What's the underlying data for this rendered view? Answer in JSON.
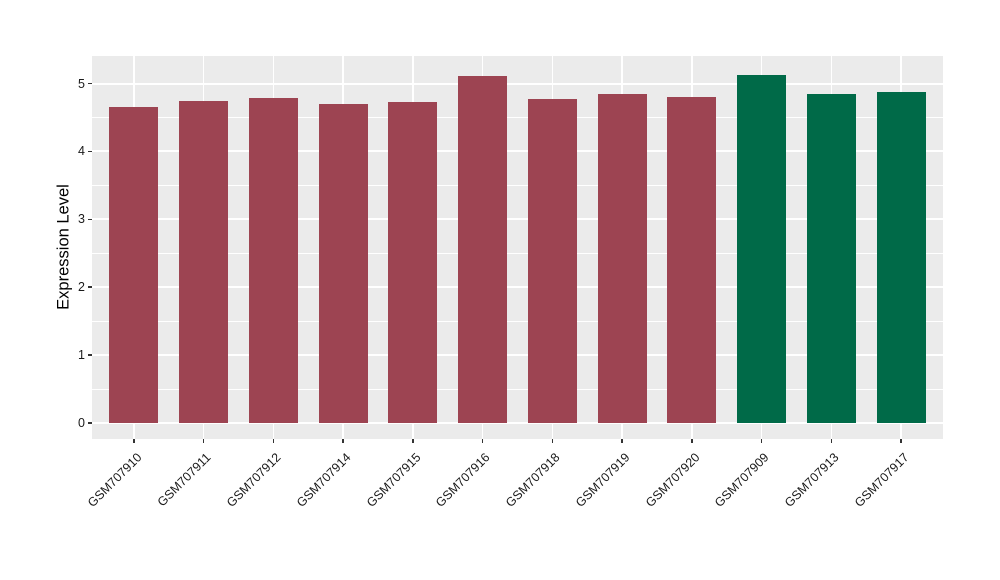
{
  "chart_data": {
    "type": "bar",
    "title": "",
    "xlabel": "",
    "ylabel": "Expression Level",
    "categories": [
      "GSM707910",
      "GSM707911",
      "GSM707912",
      "GSM707914",
      "GSM707915",
      "GSM707916",
      "GSM707918",
      "GSM707919",
      "GSM707920",
      "GSM707909",
      "GSM707913",
      "GSM707917"
    ],
    "values": [
      4.66,
      4.74,
      4.78,
      4.7,
      4.73,
      5.11,
      4.77,
      4.84,
      4.8,
      5.13,
      4.85,
      4.88
    ],
    "bar_colors": [
      "#9D4452",
      "#9D4452",
      "#9D4452",
      "#9D4452",
      "#9D4452",
      "#9D4452",
      "#9D4452",
      "#9D4452",
      "#9D4452",
      "#006A48",
      "#006A48",
      "#006A48"
    ],
    "group_colors": {
      "maroon_group": "#9D4452",
      "green_group": "#006A48"
    },
    "yticks": [
      0,
      1,
      2,
      3,
      4,
      5
    ],
    "minor_yticks": [
      0.5,
      1.5,
      2.5,
      3.5,
      4.5
    ],
    "ylim": [
      0,
      5.4
    ],
    "grid": "horizontal major+minor, vertical major at category centers",
    "legend_position": "none",
    "panel_background": "#EBEBEB",
    "gridline_color": "#FFFFFF",
    "bar_width_fraction": 0.7,
    "x_label_rotation_deg": 45
  }
}
